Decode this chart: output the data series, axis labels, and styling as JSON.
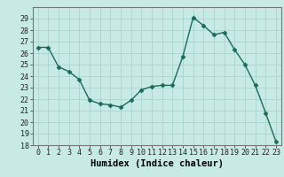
{
  "x": [
    0,
    1,
    2,
    3,
    4,
    5,
    6,
    7,
    8,
    9,
    10,
    11,
    12,
    13,
    14,
    15,
    16,
    17,
    18,
    19,
    20,
    21,
    22,
    23
  ],
  "y": [
    26.5,
    26.5,
    24.8,
    24.4,
    23.7,
    21.9,
    21.6,
    21.5,
    21.3,
    21.9,
    22.8,
    23.1,
    23.2,
    23.2,
    25.7,
    29.1,
    28.4,
    27.6,
    27.8,
    26.3,
    25.0,
    23.2,
    20.8,
    18.3
  ],
  "line_color": "#1a6b5a",
  "marker": "D",
  "marker_size": 2.5,
  "bg_color": "#c8eae4",
  "grid_color": "#a8d4cc",
  "xlabel": "Humidex (Indice chaleur)",
  "ylim": [
    18,
    30
  ],
  "xlim": [
    -0.5,
    23.5
  ],
  "yticks": [
    18,
    19,
    20,
    21,
    22,
    23,
    24,
    25,
    26,
    27,
    28,
    29
  ],
  "xticks": [
    0,
    1,
    2,
    3,
    4,
    5,
    6,
    7,
    8,
    9,
    10,
    11,
    12,
    13,
    14,
    15,
    16,
    17,
    18,
    19,
    20,
    21,
    22,
    23
  ],
  "tick_fontsize": 6,
  "xlabel_fontsize": 7.5,
  "xlabel_fontweight": "bold"
}
